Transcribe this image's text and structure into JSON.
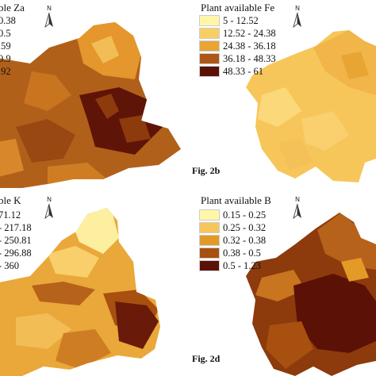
{
  "panels": {
    "za": {
      "title": "ble Za",
      "legend": [
        {
          "label": "0.38",
          "color": "#fff6a8"
        },
        {
          "label": "0.5",
          "color": "#f7c65a"
        },
        {
          "label": ".59",
          "color": "#e49a27"
        },
        {
          "label": "0.9",
          "color": "#a8500f"
        },
        {
          "label": ".92",
          "color": "#5c1106"
        }
      ],
      "fig": ""
    },
    "fe": {
      "title": "Plant available Fe",
      "legend": [
        {
          "label": "5 - 12.52",
          "color": "#fff6a8"
        },
        {
          "label": "12.52 - 24.38",
          "color": "#f9cf65"
        },
        {
          "label": "24.38 - 36.18",
          "color": "#e9a533"
        },
        {
          "label": "36.18 - 48.33",
          "color": "#ad5716"
        },
        {
          "label": "48.33 - 61",
          "color": "#5c1106"
        }
      ],
      "fig": "Fig. 2b"
    },
    "k": {
      "title": "ble K",
      "legend": [
        {
          "label": "71.12",
          "color": "#fff6a8"
        },
        {
          "label": "- 217.18",
          "color": "#f7c65a"
        },
        {
          "label": "- 250.81",
          "color": "#e49a27"
        },
        {
          "label": "- 296.88",
          "color": "#a8500f"
        },
        {
          "label": "- 360",
          "color": "#5c1106"
        }
      ],
      "fig": ""
    },
    "b": {
      "title": "Plant available B",
      "legend": [
        {
          "label": "0.15 - 0.25",
          "color": "#fff6a8"
        },
        {
          "label": "0.25 - 0.32",
          "color": "#f7c65a"
        },
        {
          "label": "0.32 - 0.38",
          "color": "#e49a27"
        },
        {
          "label": "0.38 - 0.5",
          "color": "#a8500f"
        },
        {
          "label": "0.5 - 1.23",
          "color": "#5c1106"
        }
      ],
      "fig": "Fig. 2d"
    }
  },
  "north_label": "N"
}
